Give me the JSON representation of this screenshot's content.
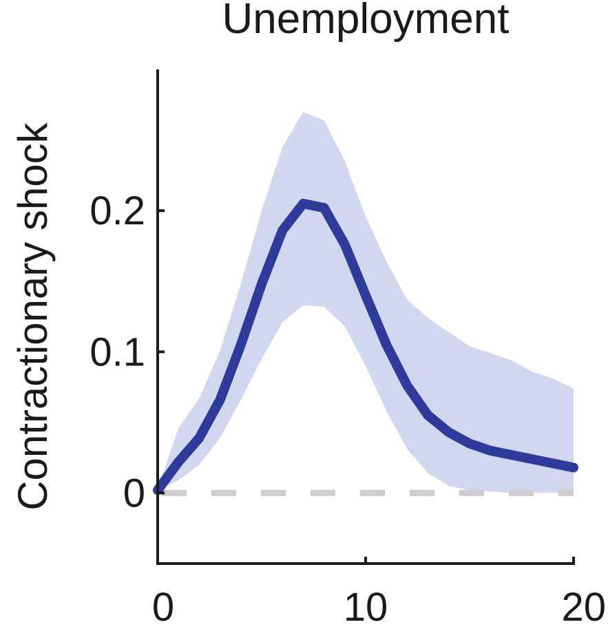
{
  "chart_data": {
    "type": "line",
    "title": "Unemployment",
    "xlabel": "",
    "ylabel": "Contractionary shock",
    "xlim": [
      0,
      20
    ],
    "ylim": [
      -0.05,
      0.3
    ],
    "x_ticks": [
      0,
      10,
      20
    ],
    "x_tick_labels": [
      "0",
      "10",
      "20"
    ],
    "y_ticks": [
      0,
      0.1,
      0.2
    ],
    "y_tick_labels": [
      "0",
      "0.1",
      "0.2"
    ],
    "grid": false,
    "legend": "none",
    "x": [
      0,
      1,
      2,
      3,
      4,
      5,
      6,
      7,
      8,
      9,
      10,
      11,
      12,
      13,
      14,
      15,
      16,
      17,
      18,
      19,
      20
    ],
    "series": [
      {
        "values": [
          0.002,
          0.022,
          0.039,
          0.066,
          0.105,
          0.148,
          0.186,
          0.205,
          0.202,
          0.176,
          0.14,
          0.105,
          0.076,
          0.055,
          0.043,
          0.035,
          0.03,
          0.027,
          0.024,
          0.021,
          0.018
        ],
        "lower": [
          0.002,
          0.009,
          0.02,
          0.039,
          0.066,
          0.095,
          0.121,
          0.133,
          0.132,
          0.118,
          0.09,
          0.058,
          0.031,
          0.014,
          0.005,
          0.002,
          0.001,
          0.0,
          0.0,
          0.0,
          0.0
        ],
        "upper": [
          0.003,
          0.046,
          0.067,
          0.101,
          0.148,
          0.2,
          0.245,
          0.27,
          0.264,
          0.235,
          0.196,
          0.164,
          0.137,
          0.124,
          0.114,
          0.104,
          0.099,
          0.094,
          0.086,
          0.081,
          0.074
        ]
      }
    ],
    "colors": {
      "line": "#2e3b9a",
      "band": "#d0d7ee",
      "zero_line": "#cccccc",
      "axis": "#1a1a1a"
    }
  }
}
